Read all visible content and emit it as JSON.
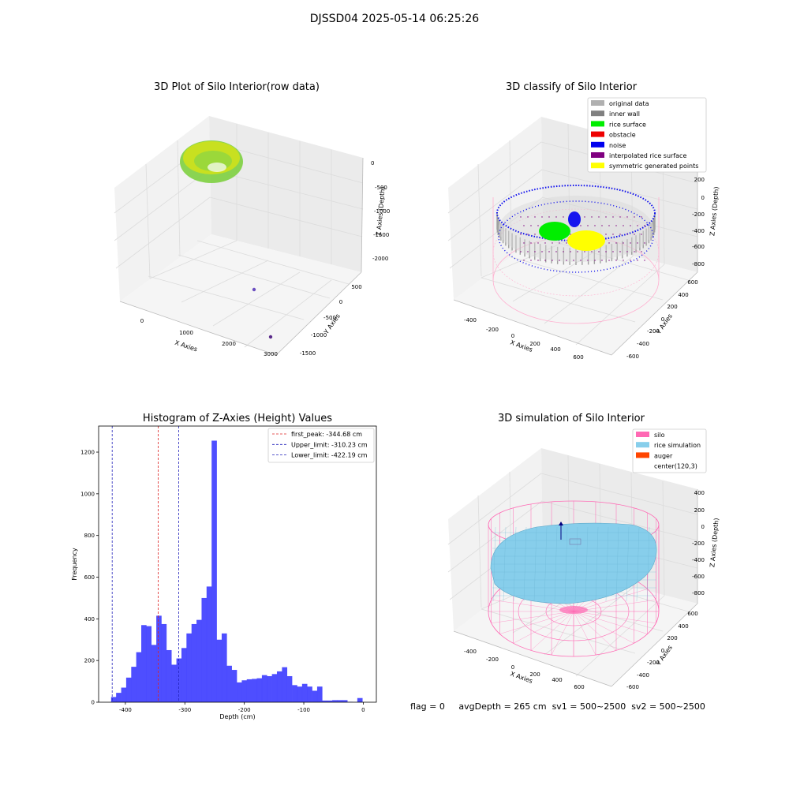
{
  "suptitle": "DJSSD04 2025-05-14 06:25:26",
  "footer": {
    "flag": "flag = 0",
    "avg_depth": "avgDepth = 265 cm",
    "sv1": "sv1 = 500~2500",
    "sv2": "sv2 = 500~2500"
  },
  "chart_data": [
    {
      "type": "scatter",
      "title": "3D Plot of Silo Interior(row data)",
      "xlabel": "X Axies",
      "ylabel": "Y Axies",
      "zlabel": "Z Axies (Depth)",
      "x_ticks": [
        "0",
        "1000",
        "2000",
        "3000"
      ],
      "y_ticks": [
        "500",
        "0",
        "-500",
        "-1000",
        "-1500"
      ],
      "z_ticks": [
        "0",
        "-500",
        "-1000",
        "-1500",
        "-2000"
      ],
      "colors": {
        "surface_a": "#c8e020",
        "surface_b": "#7ed040",
        "outlier": "#5a2a8a"
      }
    },
    {
      "type": "scatter",
      "title": "3D classify of Silo Interior",
      "xlabel": "X Axies",
      "ylabel": "Y Axies",
      "zlabel": "Z Axies (Depth)",
      "x_ticks": [
        "-400",
        "-200",
        "0",
        "200",
        "400",
        "600"
      ],
      "y_ticks": [
        "600",
        "400",
        "200",
        "0",
        "-200",
        "-400",
        "-600"
      ],
      "z_ticks": [
        "200",
        "0",
        "-200",
        "-400",
        "-600",
        "-800"
      ],
      "legend_position": "top-right",
      "legend": [
        {
          "label": "original data",
          "color": "#b0b0b0"
        },
        {
          "label": "inner wall",
          "color": "#808080"
        },
        {
          "label": "rice surface",
          "color": "#00ee00"
        },
        {
          "label": "obstacle",
          "color": "#ee0000"
        },
        {
          "label": "noise",
          "color": "#0000ee"
        },
        {
          "label": "interpolated rice surface",
          "color": "#800080"
        },
        {
          "label": "symmetric generated points",
          "color": "#ffff00"
        }
      ],
      "colors": {
        "cylinder": "#ffb0d0"
      }
    },
    {
      "type": "bar",
      "title": "Histogram of Z-Axies (Height) Values",
      "xlabel": "Depth (cm)",
      "ylabel": "Frequency",
      "xlim": [
        -445,
        22
      ],
      "ylim": [
        0,
        1325
      ],
      "x_ticks": [
        -400,
        -300,
        -200,
        -100,
        0
      ],
      "y_ticks": [
        0,
        200,
        400,
        600,
        800,
        1000,
        1200
      ],
      "bin_width": 8.45,
      "bin_left_edges": [
        -424.0,
        -415.6,
        -407.1,
        -398.7,
        -390.2,
        -381.8,
        -373.3,
        -364.9,
        -356.4,
        -348.0,
        -339.5,
        -331.1,
        -322.6,
        -314.2,
        -305.7,
        -297.3,
        -288.8,
        -280.4,
        -271.9,
        -263.5,
        -255.0,
        -246.6,
        -238.1,
        -229.7,
        -221.2,
        -212.8,
        -204.3,
        -195.9,
        -187.4,
        -179.0,
        -170.5,
        -162.1,
        -153.6,
        -145.2,
        -136.7,
        -128.3,
        -119.8,
        -111.4,
        -102.9,
        -94.5,
        -86.0,
        -77.6,
        -69.1,
        -60.7,
        -52.2,
        -43.8,
        -35.3,
        -26.9,
        -18.4,
        -10.0,
        -1.5
      ],
      "values": [
        25,
        45,
        70,
        118,
        170,
        240,
        370,
        365,
        275,
        415,
        375,
        250,
        180,
        210,
        260,
        330,
        375,
        395,
        500,
        555,
        1255,
        300,
        330,
        175,
        155,
        95,
        105,
        110,
        112,
        115,
        130,
        125,
        135,
        148,
        168,
        125,
        82,
        75,
        88,
        75,
        55,
        75,
        8,
        8,
        10,
        10,
        10,
        2,
        1,
        20,
        0
      ],
      "bar_color": "#4444ff",
      "legend_position": "top-right",
      "reference_lines": [
        {
          "label": "first_peak: -344.68 cm",
          "value": -344.68,
          "color": "#dd2222"
        },
        {
          "label": "Upper_limit: -310.23 cm",
          "value": -310.23,
          "color": "#2222bb"
        },
        {
          "label": "Lower_limit: -422.19 cm",
          "value": -422.19,
          "color": "#2222bb"
        }
      ]
    },
    {
      "type": "scatter",
      "title": "3D simulation of Silo Interior",
      "xlabel": "X Axies",
      "ylabel": "Y Axies",
      "zlabel": "Z Axies (Depth)",
      "x_ticks": [
        "-400",
        "-200",
        "0",
        "200",
        "400",
        "600"
      ],
      "y_ticks": [
        "600",
        "400",
        "200",
        "0",
        "-200",
        "-400",
        "-600"
      ],
      "z_ticks": [
        "400",
        "200",
        "0",
        "-200",
        "-400",
        "-600",
        "-800"
      ],
      "legend_position": "top-right",
      "legend": [
        {
          "label": "silo",
          "color": "#ff69b4"
        },
        {
          "label": "rice simulation",
          "color": "#87ceeb"
        },
        {
          "label": "auger",
          "color": "#ff4500"
        },
        {
          "label": "center(120,3)",
          "color": "#ffffff"
        }
      ]
    }
  ]
}
